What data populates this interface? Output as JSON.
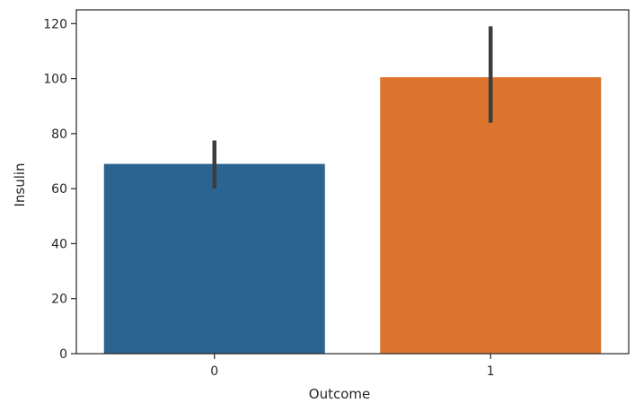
{
  "chart_data": {
    "type": "bar",
    "xlabel": "Outcome",
    "ylabel": "Insulin",
    "categories": [
      "0",
      "1"
    ],
    "values": [
      69,
      100.5
    ],
    "error_low": [
      60,
      84
    ],
    "error_high": [
      77.5,
      119
    ],
    "ylim": [
      0,
      125
    ],
    "yticks": [
      0,
      20,
      40,
      60,
      80,
      100,
      120
    ],
    "grid": false,
    "legend": "none",
    "colors": [
      "#2b6391",
      "#dc742d"
    ],
    "errorbar_color": "#3d3d3d"
  }
}
